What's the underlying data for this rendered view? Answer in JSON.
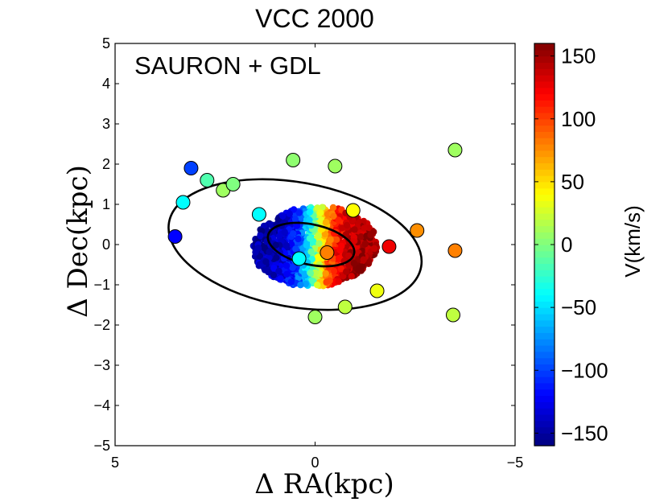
{
  "chart_data": {
    "type": "scatter",
    "title": "VCC 2000",
    "annotation": "SAURON + GDL",
    "xlabel": "Δ RA(kpc)",
    "ylabel": "Δ Dec(kpc)",
    "xlim": [
      5,
      -5
    ],
    "ylim": [
      -5,
      5
    ],
    "xticks": [
      5,
      0,
      -5
    ],
    "xtick_labels": [
      "5",
      "0",
      "−5"
    ],
    "yticks": [
      -5,
      -4,
      -3,
      -2,
      -1,
      0,
      1,
      2,
      3,
      4,
      5
    ],
    "ytick_labels": [
      "−5",
      "−4",
      "−3",
      "−2",
      "−1",
      "0",
      "1",
      "2",
      "3",
      "4",
      "5"
    ],
    "grid": false,
    "colorbar": {
      "label": "V(km/s)",
      "range": [
        -160,
        160
      ],
      "ticks": [
        -150,
        -100,
        -50,
        0,
        50,
        100,
        150
      ],
      "tick_labels": [
        "−150",
        "−100",
        "−50",
        "0",
        "50",
        "100",
        "150"
      ],
      "colormap": "jet"
    },
    "ellipses": [
      {
        "name": "outer-ellipse",
        "cx": 0.5,
        "cy": 0.0,
        "a": 3.2,
        "b": 1.55,
        "angle_deg": 10
      },
      {
        "name": "inner-ellipse",
        "cx": 0.1,
        "cy": 0.0,
        "a": 1.1,
        "b": 0.5,
        "angle_deg": 12
      }
    ],
    "points": [
      {
        "x": 3.5,
        "y": 0.2,
        "v": -120
      },
      {
        "x": 3.1,
        "y": 1.9,
        "v": -100
      },
      {
        "x": 3.3,
        "y": 1.05,
        "v": -40
      },
      {
        "x": 2.7,
        "y": 1.6,
        "v": -15
      },
      {
        "x": 2.3,
        "y": 1.35,
        "v": 10
      },
      {
        "x": 2.05,
        "y": 1.5,
        "v": 0
      },
      {
        "x": 1.4,
        "y": 0.75,
        "v": -40
      },
      {
        "x": 0.55,
        "y": 2.1,
        "v": 5
      },
      {
        "x": 0.4,
        "y": -0.35,
        "v": -40
      },
      {
        "x": -0.3,
        "y": -0.2,
        "v": 80
      },
      {
        "x": -0.5,
        "y": 1.95,
        "v": 10
      },
      {
        "x": -0.95,
        "y": 0.85,
        "v": 40
      },
      {
        "x": 0.0,
        "y": -1.8,
        "v": 10
      },
      {
        "x": -0.75,
        "y": -1.55,
        "v": 20
      },
      {
        "x": -1.55,
        "y": -1.15,
        "v": 35
      },
      {
        "x": -1.85,
        "y": -0.05,
        "v": 125
      },
      {
        "x": -2.55,
        "y": 0.35,
        "v": 75
      },
      {
        "x": -3.5,
        "y": 2.35,
        "v": 10
      },
      {
        "x": -3.5,
        "y": -0.15,
        "v": 80
      },
      {
        "x": -3.45,
        "y": -1.75,
        "v": 20
      }
    ]
  }
}
